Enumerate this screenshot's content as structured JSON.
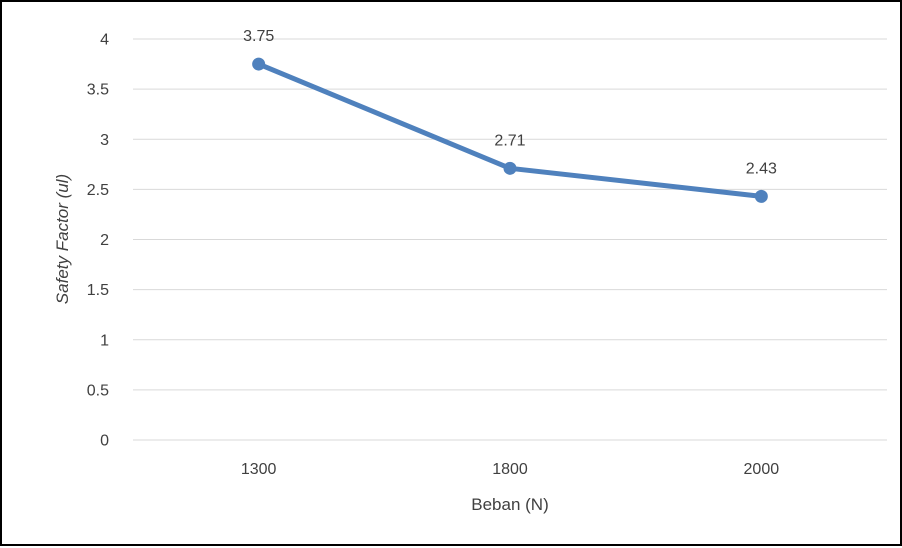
{
  "chart_data": {
    "type": "line",
    "title": "",
    "xlabel": "Beban (N)",
    "ylabel": "Safety Factor (ul)",
    "categories": [
      "1300",
      "1800",
      "2000"
    ],
    "series": [
      {
        "values": [
          3.75,
          2.71,
          2.43
        ],
        "color": "#4F81BD"
      }
    ],
    "data_labels": [
      "3.75",
      "2.71",
      "2.43"
    ],
    "yticks": [
      "0",
      "0.5",
      "1",
      "1.5",
      "2",
      "2.5",
      "3",
      "3.5",
      "4"
    ],
    "ylim": [
      0,
      4
    ],
    "grid": true,
    "legend": "none"
  }
}
